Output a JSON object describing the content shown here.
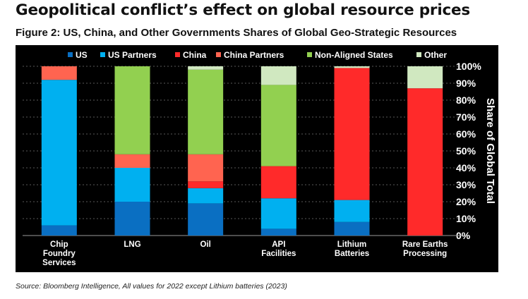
{
  "headline": "Geopolitical conflict’s effect on global resource prices",
  "figure_title": "Figure 2: US, China, and Other Governments Shares of Global Geo-Strategic Resources",
  "source": "Source: Bloomberg Intelligence, All values for 2022 except Lithium batteries (2023)",
  "chart_data": {
    "type": "bar",
    "stacked": true,
    "categories": [
      [
        "Chip",
        "Foundry",
        "Services"
      ],
      [
        "LNG"
      ],
      [
        "Oil"
      ],
      [
        "API",
        "Facilities"
      ],
      [
        "Lithium",
        "Batteries"
      ],
      [
        "Rare Earths",
        "Processing"
      ]
    ],
    "series": [
      {
        "name": "US",
        "color": "#0a6fc2",
        "values": [
          6,
          20,
          19,
          4,
          8,
          0
        ]
      },
      {
        "name": "US Partners",
        "color": "#00b0f0",
        "values": [
          86,
          20,
          9,
          18,
          13,
          0
        ]
      },
      {
        "name": "China",
        "color": "#ff2a2a",
        "values": [
          0,
          0,
          4,
          19,
          78,
          87
        ]
      },
      {
        "name": "China Partners",
        "color": "#ff6450",
        "values": [
          8,
          8,
          16,
          0,
          0,
          0
        ]
      },
      {
        "name": "Non-Aligned States",
        "color": "#92d050",
        "values": [
          0,
          52,
          50,
          48,
          0,
          0
        ]
      },
      {
        "name": "Other",
        "color": "#d0e8c0",
        "values": [
          0,
          0,
          2,
          11,
          1,
          13
        ]
      }
    ],
    "ylabel": "Share of Global Total",
    "ylim": [
      0,
      100
    ],
    "yticks": [
      "0%",
      "10%",
      "20%",
      "30%",
      "40%",
      "50%",
      "60%",
      "70%",
      "80%",
      "90%",
      "100%"
    ],
    "grid": true,
    "legend": "top",
    "y_axis_side": "right"
  }
}
